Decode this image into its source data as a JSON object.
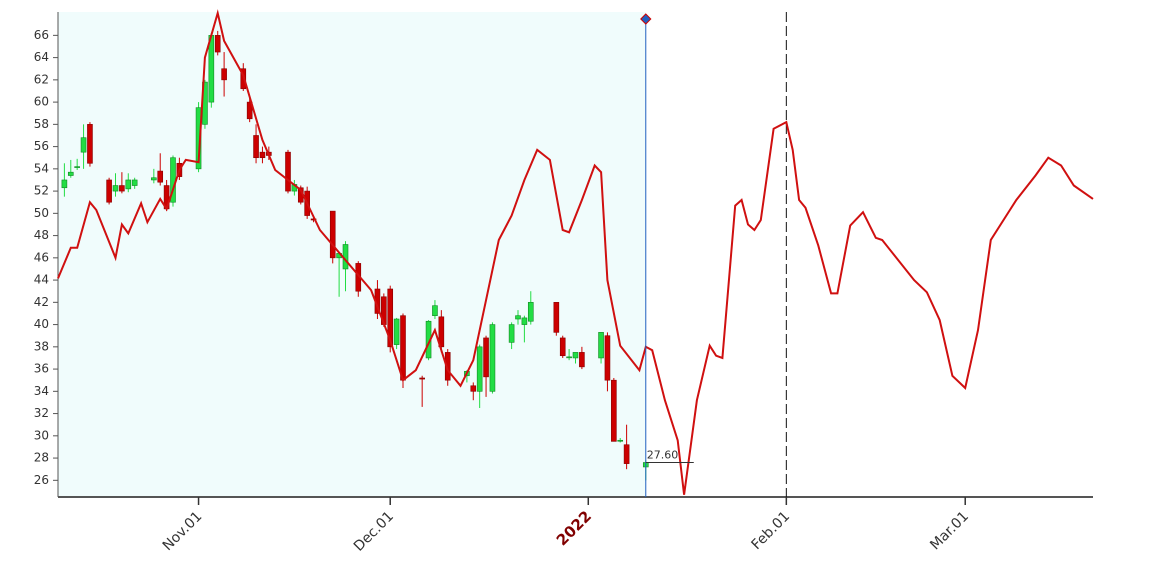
{
  "chart_data": {
    "type": "candlestick",
    "xlim": [
      "Oct.10",
      "Mar.21"
    ],
    "xticks": [
      "Nov.01",
      "Dec.01",
      {
        "value": "Jan.01",
        "label": "2022"
      },
      "Feb.01",
      "Mar.01"
    ],
    "ylim": [
      24.5,
      68.1
    ],
    "yticks": [
      26,
      28,
      30,
      32,
      34,
      36,
      38,
      40,
      42,
      44,
      46,
      48,
      50,
      52,
      54,
      56,
      58,
      60,
      62,
      64,
      66
    ],
    "up_color": "#22dd44",
    "down_color": "#cc0000",
    "background_color": "#f0fcfc",
    "cursor_x": "Jan.10",
    "cursor_color": "#2060c0",
    "marker_x": "Feb.01",
    "candles": {
      "x": [
        "Oct.11",
        "Oct.12",
        "Oct.13",
        "Oct.14",
        "Oct.15",
        "Oct.18",
        "Oct.19",
        "Oct.20",
        "Oct.21",
        "Oct.22",
        "Oct.25",
        "Oct.26",
        "Oct.27",
        "Oct.28",
        "Oct.29",
        "Nov.01",
        "Nov.02",
        "Nov.03",
        "Nov.04",
        "Nov.05",
        "Nov.08",
        "Nov.09",
        "Nov.10",
        "Nov.11",
        "Nov.12",
        "Nov.15",
        "Nov.16",
        "Nov.17",
        "Nov.18",
        "Nov.19",
        "Nov.22",
        "Nov.23",
        "Nov.24",
        "Nov.26",
        "Nov.29",
        "Nov.30",
        "Dec.01",
        "Dec.02",
        "Dec.03",
        "Dec.06",
        "Dec.07",
        "Dec.08",
        "Dec.09",
        "Dec.10",
        "Dec.13",
        "Dec.14",
        "Dec.15",
        "Dec.16",
        "Dec.17",
        "Dec.20",
        "Dec.21",
        "Dec.22",
        "Dec.23",
        "Dec.27",
        "Dec.28",
        "Dec.29",
        "Dec.30",
        "Dec.31",
        "Jan.03",
        "Jan.04",
        "Jan.05",
        "Jan.06",
        "Jan.07",
        "Jan.10"
      ],
      "open": [
        52.3,
        53.4,
        54.2,
        55.5,
        58,
        53,
        52,
        52.5,
        52.2,
        52.5,
        53,
        53.8,
        52.5,
        51,
        54.5,
        54,
        58,
        60,
        66,
        63,
        63,
        60,
        57,
        55.5,
        55.5,
        55.5,
        52,
        52.3,
        52,
        49.5,
        50.2,
        46,
        45,
        45.5,
        43.2,
        42.5,
        43.2,
        38.2,
        40.8,
        35.2,
        37,
        40.8,
        40.7,
        37.5,
        35.4,
        34.5,
        34,
        38.8,
        34,
        38.4,
        40.5,
        40,
        40.3,
        42,
        38.8,
        37.1,
        37,
        37.5,
        37,
        39,
        35,
        29.6,
        29.2,
        27.2
      ],
      "high": [
        54.5,
        54.8,
        54.9,
        58,
        58.2,
        53.2,
        53.6,
        53.7,
        53.6,
        53.2,
        54,
        55.4,
        53,
        55.2,
        55,
        60,
        62,
        66.2,
        66.4,
        64.5,
        63.5,
        60.5,
        58,
        56,
        56,
        55.7,
        53,
        52.5,
        52.4,
        49.7,
        50.2,
        46.5,
        47.5,
        45.7,
        44,
        42.8,
        43.5,
        40.6,
        41,
        35.4,
        40.4,
        42.2,
        41.3,
        37.8,
        35.9,
        34.8,
        38.2,
        39,
        40.2,
        40.2,
        41.3,
        40.8,
        43,
        42,
        39,
        37.8,
        37.5,
        38,
        39.3,
        39.3,
        35.2,
        29.8,
        31,
        27.8
      ],
      "low": [
        51.5,
        53.2,
        53.9,
        54,
        54.2,
        50.8,
        51.5,
        51.8,
        51.9,
        52.2,
        52.7,
        52.5,
        50.2,
        50.6,
        53,
        53.7,
        57.6,
        59.5,
        64.2,
        60.5,
        61,
        58.2,
        54.5,
        54.5,
        54.8,
        51.8,
        51.6,
        50.8,
        49.5,
        49.2,
        45.5,
        42.5,
        43,
        42.5,
        40.5,
        39.8,
        37.5,
        37.8,
        34.3,
        32.6,
        36.8,
        40.5,
        37.5,
        34.5,
        34.8,
        33.2,
        32.5,
        33.5,
        33.8,
        37.8,
        40,
        38.4,
        40,
        39,
        37,
        36.8,
        36.5,
        36,
        36.5,
        34,
        29.5,
        29.4,
        27,
        26
      ],
      "close": [
        53,
        53.7,
        54.2,
        56.8,
        54.5,
        51,
        52.5,
        52,
        53,
        53,
        53.2,
        52.8,
        50.4,
        55,
        53.3,
        59.5,
        61.8,
        66,
        64.5,
        62,
        61.2,
        58.5,
        55,
        55,
        55.2,
        52,
        52.6,
        51,
        49.8,
        49.4,
        46,
        46.4,
        47.2,
        43,
        41,
        40,
        38,
        40.5,
        35,
        35.1,
        40.3,
        41.7,
        38,
        35,
        35.8,
        34,
        38,
        35.3,
        40,
        40,
        40.8,
        40.6,
        42,
        39.3,
        37.2,
        37.1,
        37.5,
        36.2,
        39.3,
        35,
        29.5,
        29.6,
        27.5,
        27.6
      ]
    },
    "line": {
      "color": "#d01010",
      "x": [
        "Oct.10",
        "Oct.12",
        "Oct.13",
        "Oct.15",
        "Oct.16",
        "Oct.19",
        "Oct.20",
        "Oct.21",
        "Oct.23",
        "Oct.24",
        "Oct.26",
        "Oct.27",
        "Oct.29",
        "Oct.30",
        "Nov.01",
        "Nov.02",
        "Nov.04",
        "Nov.05",
        "Nov.08",
        "Nov.11",
        "Nov.13",
        "Nov.17",
        "Nov.20",
        "Nov.24",
        "Nov.28",
        "Dec.01",
        "Dec.03",
        "Dec.05",
        "Dec.08",
        "Dec.10",
        "Dec.12",
        "Dec.14",
        "Dec.18",
        "Dec.20",
        "Dec.22",
        "Dec.24",
        "Dec.26",
        "Dec.28",
        "Dec.29",
        "Dec.31",
        "Jan.02",
        "Jan.03",
        "Jan.04",
        "Jan.06",
        "Jan.09",
        "Jan.10",
        "Jan.11",
        "Jan.13",
        "Jan.15",
        "Jan.16",
        "Jan.18",
        "Jan.20",
        "Jan.21",
        "Jan.22",
        "Jan.24",
        "Jan.25",
        "Jan.26",
        "Jan.27",
        "Jan.28",
        "Jan.30",
        "Feb.01",
        "Feb.02",
        "Feb.03",
        "Feb.04",
        "Feb.06",
        "Feb.08",
        "Feb.09",
        "Feb.11",
        "Feb.13",
        "Feb.15",
        "Feb.16",
        "Feb.21",
        "Feb.23",
        "Feb.25",
        "Feb.27",
        "Mar.01",
        "Mar.03",
        "Mar.05",
        "Mar.08",
        "Mar.09",
        "Mar.12",
        "Mar.14",
        "Mar.16",
        "Mar.18",
        "Mar.21"
      ],
      "values": [
        44.15,
        46.9,
        46.9,
        51,
        50.3,
        46,
        49,
        48.2,
        50.9,
        49.2,
        51.3,
        50.4,
        53.9,
        54.8,
        54.6,
        64,
        68,
        65.5,
        62.4,
        56.6,
        53.9,
        52.1,
        48.5,
        45.8,
        43.1,
        38.6,
        35,
        35.9,
        39.5,
        35.9,
        34.5,
        36.8,
        47.6,
        49.8,
        53,
        55.7,
        54.8,
        48.5,
        48.3,
        51.2,
        54.3,
        53.7,
        44,
        38.1,
        35.9,
        38,
        37.7,
        33.2,
        29.6,
        24.7,
        33.2,
        38.1,
        37.2,
        37,
        50.7,
        51.2,
        49,
        48.5,
        49.4,
        57.6,
        58.2,
        55.7,
        51.2,
        50.5,
        47.1,
        42.8,
        42.8,
        48.9,
        50.1,
        47.8,
        47.6,
        44,
        42.9,
        40.4,
        35.4,
        34.3,
        39.5,
        47.6,
        50.3,
        51.2,
        53.4,
        55,
        54.3,
        52.5,
        51.3
      ]
    },
    "last_price": {
      "value": 27.6,
      "label": "27.60"
    }
  }
}
